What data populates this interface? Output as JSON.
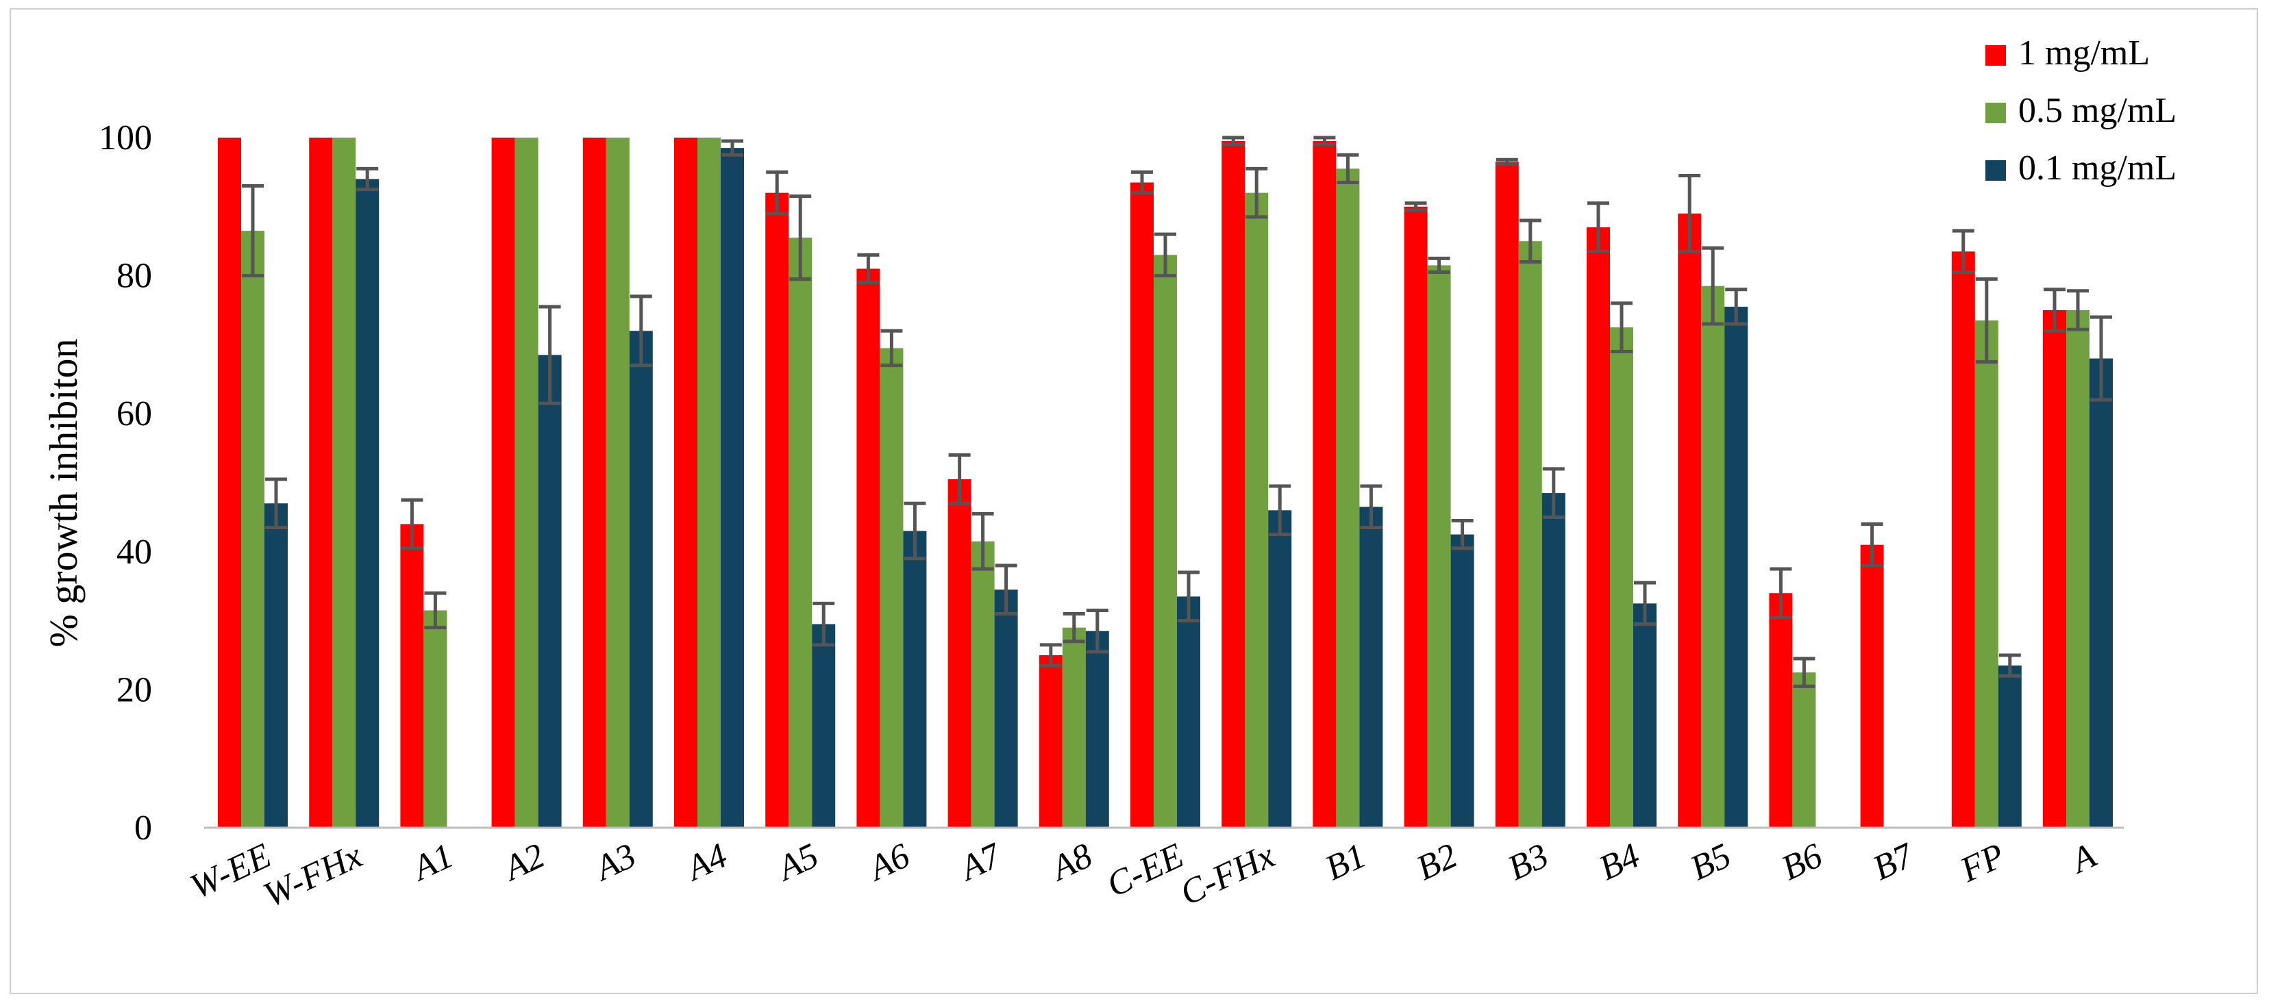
{
  "chart_data": {
    "type": "bar",
    "title": "",
    "xlabel": "",
    "ylabel": "% growth inhibiton",
    "ylim": [
      0,
      100
    ],
    "yticks": [
      0,
      20,
      40,
      60,
      80,
      100
    ],
    "grid": false,
    "legend_position": "top-right",
    "categories": [
      "W-EE",
      "W-FHx",
      "A1",
      "A2",
      "A3",
      "A4",
      "A5",
      "A6",
      "A7",
      "A8",
      "C-EE",
      "C-FHx",
      "B1",
      "B2",
      "B3",
      "B4",
      "B5",
      "B6",
      "B7",
      "FP",
      "A"
    ],
    "series": [
      {
        "name": "1 mg/mL",
        "color": "#ff0000",
        "values": [
          100,
          100,
          44,
          100,
          100,
          100,
          92,
          81,
          50.5,
          25,
          93.5,
          99.5,
          99.5,
          90,
          96.5,
          87,
          89,
          34,
          41,
          83.5,
          75
        ],
        "errors": [
          0,
          0,
          3.5,
          0,
          0,
          0,
          3,
          2,
          3.5,
          1.5,
          1.5,
          0.5,
          0.5,
          0.5,
          0.3,
          3.5,
          5.5,
          3.5,
          3,
          3,
          3
        ]
      },
      {
        "name": "0.5 mg/mL",
        "color": "#70a040",
        "values": [
          86.5,
          100,
          31.5,
          100,
          100,
          100,
          85.5,
          69.5,
          41.5,
          29,
          83,
          92,
          95.5,
          81.5,
          85,
          72.5,
          78.5,
          22.5,
          0,
          73.5,
          75
        ],
        "errors": [
          6.5,
          0,
          2.5,
          0,
          0,
          0,
          6,
          2.5,
          4,
          2,
          3,
          3.5,
          2,
          1,
          3,
          3.5,
          5.5,
          2,
          0,
          6,
          2.8
        ]
      },
      {
        "name": "0.1 mg/mL",
        "color": "#124460",
        "values": [
          47,
          94,
          0,
          68.5,
          72,
          98.5,
          29.5,
          43,
          34.5,
          28.5,
          33.5,
          46,
          46.5,
          42.5,
          48.5,
          32.5,
          75.5,
          0,
          0,
          23.5,
          68
        ],
        "errors": [
          3.5,
          1.5,
          0,
          7,
          5,
          1,
          3,
          4,
          3.5,
          3,
          3.5,
          3.5,
          3,
          2,
          3.5,
          3,
          2.5,
          0,
          0,
          1.5,
          6
        ]
      }
    ]
  }
}
